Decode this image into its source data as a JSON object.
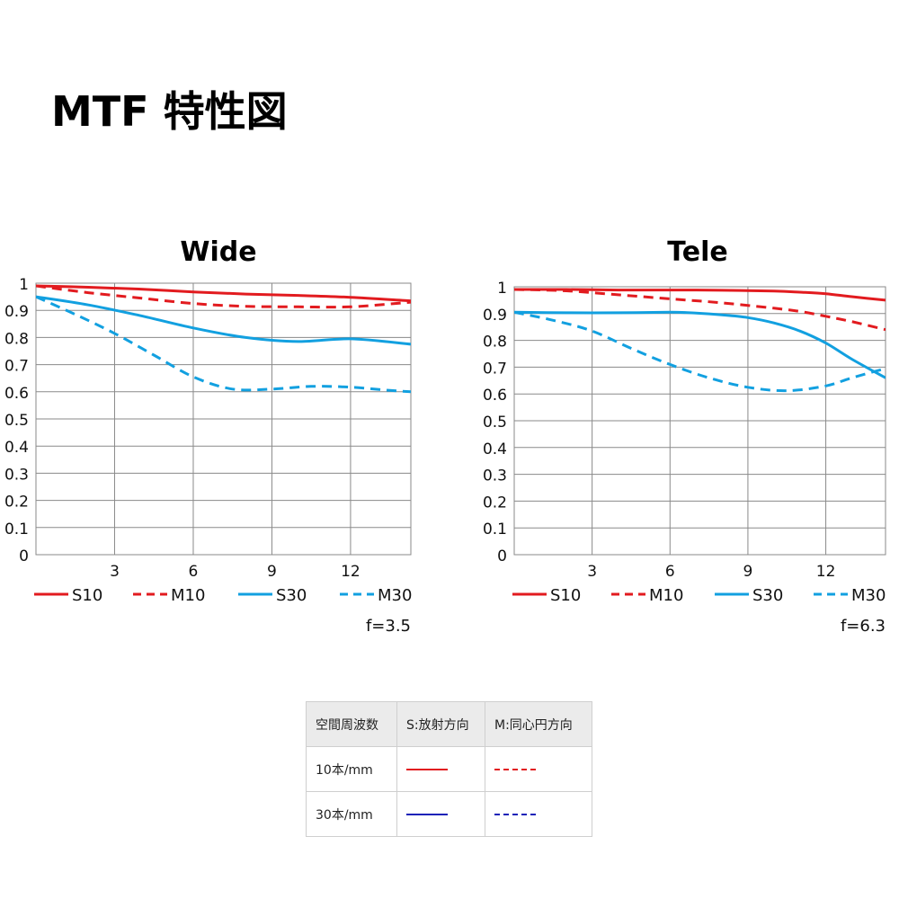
{
  "page": {
    "title": "MTF 特性図"
  },
  "colors": {
    "red": "#e21b1f",
    "blue": "#12a0e0",
    "table_red": "#e21b1f",
    "table_blue": "#1a22b8"
  },
  "chart_data": [
    {
      "type": "line",
      "title": "Wide",
      "note": "f=3.5",
      "xlim": [
        0,
        14.3
      ],
      "ylim": [
        0,
        1
      ],
      "xticks": [
        "3",
        "6",
        "9",
        "12"
      ],
      "yticks": [
        "0",
        "0.1",
        "0.2",
        "0.3",
        "0.4",
        "0.5",
        "0.6",
        "0.7",
        "0.8",
        "0.9",
        "1"
      ],
      "grid": true,
      "legend": "bottom",
      "series": [
        {
          "name": "S10",
          "color": "red",
          "dashed": false,
          "x": [
            0,
            2,
            4,
            6,
            8,
            10,
            12,
            14.3
          ],
          "y": [
            0.99,
            0.985,
            0.978,
            0.968,
            0.96,
            0.955,
            0.948,
            0.935
          ]
        },
        {
          "name": "M10",
          "color": "red",
          "dashed": true,
          "x": [
            0,
            2,
            4,
            6,
            8,
            10,
            12,
            14.3
          ],
          "y": [
            0.99,
            0.965,
            0.945,
            0.925,
            0.915,
            0.913,
            0.913,
            0.93
          ]
        },
        {
          "name": "S30",
          "color": "blue",
          "dashed": false,
          "x": [
            0,
            2,
            4,
            6,
            8,
            10,
            12,
            14.3
          ],
          "y": [
            0.95,
            0.92,
            0.88,
            0.835,
            0.8,
            0.785,
            0.795,
            0.775
          ]
        },
        {
          "name": "M30",
          "color": "blue",
          "dashed": true,
          "x": [
            0,
            1.5,
            3,
            4.5,
            6,
            7.5,
            9,
            10.5,
            12,
            13.5,
            14.3
          ],
          "y": [
            0.95,
            0.885,
            0.815,
            0.735,
            0.655,
            0.61,
            0.61,
            0.62,
            0.617,
            0.605,
            0.6
          ]
        }
      ]
    },
    {
      "type": "line",
      "title": "Tele",
      "note": "f=6.3",
      "xlim": [
        0,
        14.3
      ],
      "ylim": [
        0,
        1
      ],
      "xticks": [
        "3",
        "6",
        "9",
        "12"
      ],
      "yticks": [
        "0",
        "0.1",
        "0.2",
        "0.3",
        "0.4",
        "0.5",
        "0.6",
        "0.7",
        "0.8",
        "0.9",
        "1"
      ],
      "grid": true,
      "legend": "bottom",
      "series": [
        {
          "name": "S10",
          "color": "red",
          "dashed": false,
          "x": [
            0,
            2,
            4,
            6,
            8,
            10,
            11,
            12,
            13,
            14.3
          ],
          "y": [
            0.99,
            0.99,
            0.988,
            0.988,
            0.987,
            0.984,
            0.98,
            0.974,
            0.963,
            0.95
          ]
        },
        {
          "name": "M10",
          "color": "red",
          "dashed": true,
          "x": [
            0,
            2,
            4,
            6,
            8,
            10,
            11,
            12,
            13,
            14.3
          ],
          "y": [
            0.99,
            0.985,
            0.97,
            0.955,
            0.94,
            0.92,
            0.908,
            0.89,
            0.87,
            0.84
          ]
        },
        {
          "name": "S30",
          "color": "blue",
          "dashed": false,
          "x": [
            0,
            2,
            4,
            6,
            7,
            8,
            9,
            10,
            11,
            12,
            13,
            14.3
          ],
          "y": [
            0.905,
            0.903,
            0.903,
            0.905,
            0.902,
            0.895,
            0.885,
            0.865,
            0.835,
            0.79,
            0.73,
            0.66
          ]
        },
        {
          "name": "M30",
          "color": "blue",
          "dashed": true,
          "x": [
            0,
            1.5,
            3,
            4.5,
            6,
            7.5,
            9,
            10.5,
            12,
            13,
            14.3
          ],
          "y": [
            0.905,
            0.875,
            0.835,
            0.77,
            0.71,
            0.66,
            0.625,
            0.612,
            0.63,
            0.66,
            0.695
          ]
        }
      ]
    }
  ],
  "legend_table": {
    "headers": [
      "空間周波数",
      "S:放射方向",
      "M:同心円方向"
    ],
    "rows": [
      {
        "label": "10本/mm"
      },
      {
        "label": "30本/mm"
      }
    ]
  }
}
